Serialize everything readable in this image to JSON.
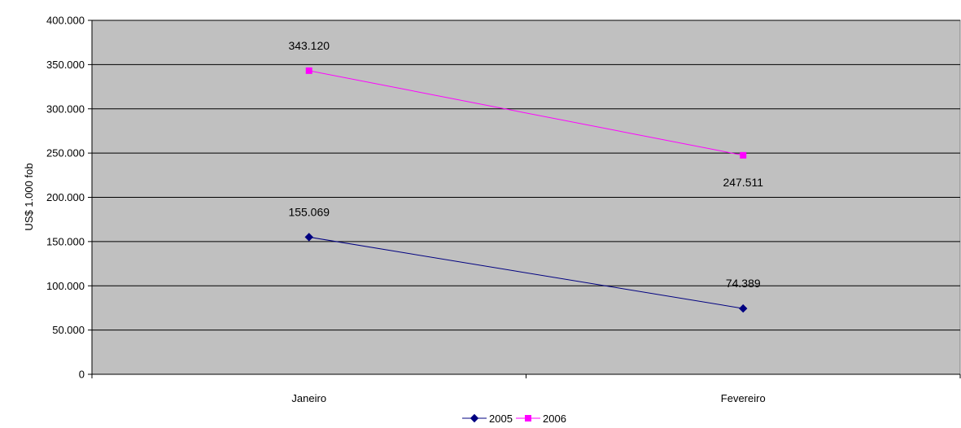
{
  "chart_data": {
    "type": "line",
    "title": "",
    "xlabel": "",
    "ylabel": "US$ 1.000 fob",
    "categories": [
      "Janeiro",
      "Fevereiro"
    ],
    "ylim": [
      0,
      400000
    ],
    "yticks": [
      0,
      50000,
      100000,
      150000,
      200000,
      250000,
      300000,
      350000,
      400000
    ],
    "ytick_labels": [
      "0",
      "50.000",
      "100.000",
      "150.000",
      "200.000",
      "250.000",
      "300.000",
      "350.000",
      "400.000"
    ],
    "grid": "horizontal",
    "plot_background": "#c0c0c0",
    "legend_position": "bottom",
    "series": [
      {
        "name": "2005",
        "values": [
          155069,
          74389
        ],
        "value_labels": [
          "155.069",
          "74.389"
        ],
        "label_position": [
          "above",
          "above"
        ],
        "color": "#000080",
        "marker": "diamond"
      },
      {
        "name": "2006",
        "values": [
          343120,
          247511
        ],
        "value_labels": [
          "343.120",
          "247.511"
        ],
        "label_position": [
          "above",
          "below"
        ],
        "color": "#ff00ff",
        "marker": "square"
      }
    ]
  }
}
